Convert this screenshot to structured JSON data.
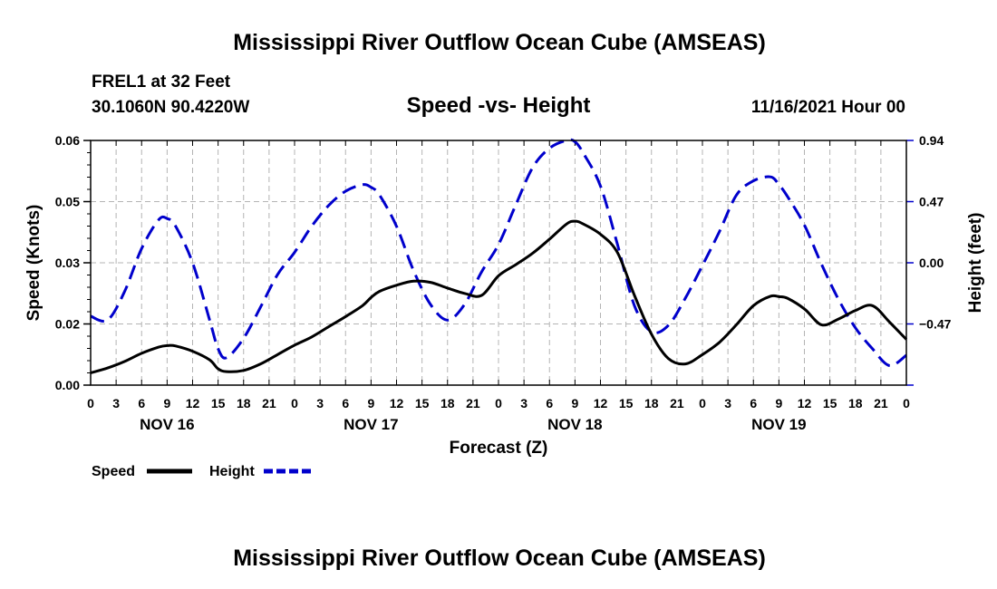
{
  "chart_data": {
    "type": "line",
    "title": "Mississippi River Outflow Ocean Cube (AMSEAS)",
    "footer_title": "Mississippi River Outflow Ocean Cube (AMSEAS)",
    "station": "FREL1 at 32 Feet",
    "location": "30.1060N  90.4220W",
    "subtitle": "Speed -vs- Height",
    "datetime": "11/16/2021 Hour 00",
    "xlabel": "Forecast (Z)",
    "ylabel": "Speed (Knots)",
    "ylabel_right": "Height (feet)",
    "grid": true,
    "x_range": [
      0,
      96
    ],
    "x_tick_labels": [
      "0",
      "3",
      "6",
      "9",
      "12",
      "15",
      "18",
      "21",
      "0",
      "3",
      "6",
      "9",
      "12",
      "15",
      "18",
      "21",
      "0",
      "3",
      "6",
      "9",
      "12",
      "15",
      "18",
      "21",
      "0",
      "3",
      "6",
      "9",
      "12",
      "15",
      "18",
      "21",
      "0"
    ],
    "day_labels": [
      {
        "hour": 9,
        "label": "NOV 16"
      },
      {
        "hour": 33,
        "label": "NOV 17"
      },
      {
        "hour": 57,
        "label": "NOV 18"
      },
      {
        "hour": 81,
        "label": "NOV 19"
      }
    ],
    "y_left": {
      "range": [
        0,
        0.06
      ],
      "ticks": [
        0,
        0.015,
        0.03,
        0.045,
        0.06
      ],
      "tick_labels": [
        "0.00",
        "0.02",
        "0.03",
        "0.05",
        "0.06"
      ]
    },
    "y_right": {
      "range": [
        -0.94,
        0.94
      ],
      "ticks": [
        -0.94,
        -0.47,
        0.0,
        0.47,
        0.94
      ],
      "tick_labels": [
        "",
        "−0.47",
        "0.00",
        "0.47",
        "0.94"
      ]
    },
    "x": [
      0,
      2,
      4,
      6,
      8,
      9,
      10,
      12,
      14,
      15,
      16,
      18,
      20,
      22,
      24,
      26,
      28,
      30,
      32,
      33,
      34,
      36,
      38,
      40,
      42,
      44,
      46,
      48,
      50,
      52,
      54,
      56,
      57,
      58,
      60,
      62,
      64,
      66,
      68,
      70,
      72,
      74,
      76,
      78,
      80,
      81,
      82,
      84,
      86,
      88,
      90,
      92,
      94,
      96
    ],
    "series": [
      {
        "name": "Speed",
        "axis": "left",
        "color": "#000000",
        "style": "solid",
        "values": [
          0.003,
          0.0042,
          0.0058,
          0.0078,
          0.0093,
          0.0097,
          0.0096,
          0.0083,
          0.0062,
          0.004,
          0.0033,
          0.0036,
          0.0052,
          0.0075,
          0.0098,
          0.0118,
          0.0143,
          0.0168,
          0.0195,
          0.0215,
          0.023,
          0.0245,
          0.0255,
          0.0252,
          0.0238,
          0.0225,
          0.022,
          0.0268,
          0.0295,
          0.0323,
          0.0358,
          0.0395,
          0.0402,
          0.0395,
          0.037,
          0.0325,
          0.022,
          0.0125,
          0.0065,
          0.0052,
          0.0075,
          0.0105,
          0.0148,
          0.0195,
          0.0218,
          0.0217,
          0.0213,
          0.0187,
          0.0148,
          0.0162,
          0.0183,
          0.0195,
          0.0155,
          0.0112
        ]
      },
      {
        "name": "Height",
        "axis": "right",
        "color": "#0000cc",
        "style": "dashed",
        "values": [
          -0.41,
          -0.44,
          -0.22,
          0.11,
          0.33,
          0.34,
          0.28,
          0.0,
          -0.44,
          -0.66,
          -0.73,
          -0.58,
          -0.34,
          -0.09,
          0.08,
          0.28,
          0.44,
          0.55,
          0.6,
          0.58,
          0.52,
          0.28,
          -0.06,
          -0.32,
          -0.44,
          -0.32,
          -0.07,
          0.14,
          0.44,
          0.73,
          0.88,
          0.94,
          0.93,
          0.84,
          0.59,
          0.14,
          -0.33,
          -0.53,
          -0.48,
          -0.27,
          -0.02,
          0.24,
          0.52,
          0.63,
          0.66,
          0.6,
          0.51,
          0.29,
          -0.01,
          -0.28,
          -0.5,
          -0.66,
          -0.79,
          -0.71
        ]
      }
    ],
    "legend": [
      {
        "label": "Speed",
        "color": "#000000",
        "style": "solid"
      },
      {
        "label": "Height",
        "color": "#0000cc",
        "style": "dashed"
      }
    ]
  }
}
